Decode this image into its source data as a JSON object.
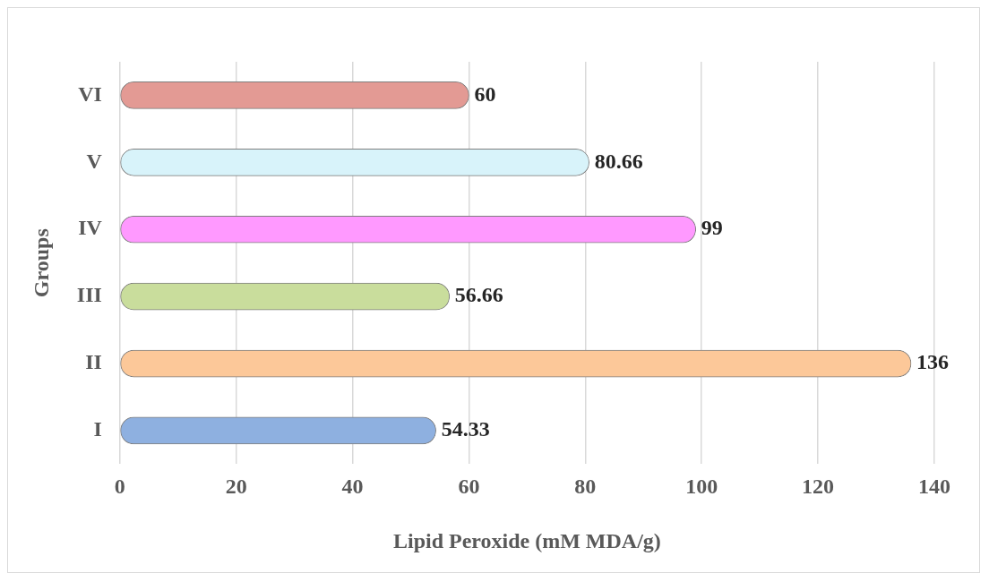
{
  "chart_data": {
    "type": "bar",
    "orientation": "horizontal",
    "xlabel": "Lipid Peroxide (mM MDA/g)",
    "ylabel": "Groups",
    "categories": [
      "VI",
      "V",
      "IV",
      "III",
      "II",
      "I"
    ],
    "values": [
      60,
      80.66,
      99,
      56.66,
      136,
      54.33
    ],
    "colors": [
      "#e39a94",
      "#d8f3fa",
      "#ff99ff",
      "#c9dd9c",
      "#fcc899",
      "#8eb0e0"
    ],
    "xlim": [
      0,
      140
    ],
    "xticks": [
      0,
      20,
      40,
      60,
      80,
      100,
      120,
      140
    ],
    "grid": "x",
    "data_labels": true,
    "legend": false
  }
}
